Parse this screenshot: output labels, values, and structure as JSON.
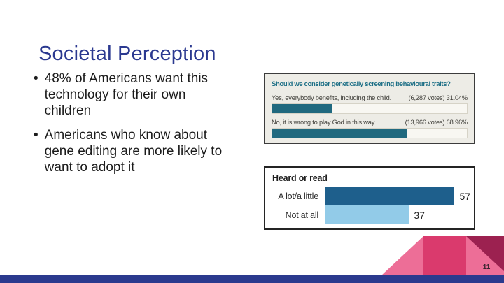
{
  "slide": {
    "title": "Societal Perception",
    "bullets": [
      {
        "text": "48% of Americans want this technology for their own children",
        "lines": [
          "48% of Americans want this",
          "technology for their own",
          "children"
        ]
      },
      {
        "text": "Americans who know about gene editing are more likely to want to adopt it",
        "lines": [
          "Americans who know about",
          "gene editing are more likely to",
          "want to adopt it"
        ]
      }
    ],
    "page_number": "11"
  },
  "colors": {
    "title_text": "#2b3990",
    "footer_bar": "#2b3a8e",
    "pink_light": "#ed6e97",
    "pink_dark": "#da3a6d",
    "maroon": "#9c2150",
    "poll_bg": "#edece6",
    "poll_teal": "#20697f",
    "bar_dark_blue": "#1e5f8c",
    "bar_light_blue": "#92cbe8"
  },
  "chart_data": [
    {
      "type": "bar",
      "orientation": "horizontal",
      "title": "Should we consider genetically screening behavioural traits?",
      "categories": [
        "Yes, everybody benefits, including the child.",
        "No, it is wrong to play God in this way."
      ],
      "values": [
        31.04,
        68.96
      ],
      "value_labels": [
        "(6,287 votes) 31.04%",
        "(13,966 votes) 68.96%"
      ],
      "xlim": [
        0,
        100
      ],
      "bar_color": "#20697f",
      "legend": "none",
      "grid": "off"
    },
    {
      "type": "bar",
      "orientation": "horizontal",
      "title": "Heard or read",
      "categories": [
        "A lot/a little",
        "Not at all"
      ],
      "values": [
        57,
        37
      ],
      "xlim": [
        0,
        63
      ],
      "bar_colors": [
        "#1e5f8c",
        "#92cbe8"
      ],
      "legend": "none",
      "grid": "off"
    }
  ]
}
